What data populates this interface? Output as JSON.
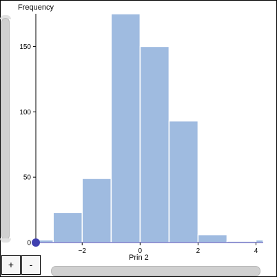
{
  "chart_data": {
    "type": "bar",
    "xlabel": "Prin 2",
    "ylabel": "Frequency",
    "bins": [
      {
        "x0": -3.5,
        "x1": -3,
        "count": 2
      },
      {
        "x0": -3,
        "x1": -2,
        "count": 23
      },
      {
        "x0": -2,
        "x1": -1,
        "count": 49
      },
      {
        "x0": -1,
        "x1": 0,
        "count": 175
      },
      {
        "x0": 0,
        "x1": 1,
        "count": 150
      },
      {
        "x0": 1,
        "x1": 2,
        "count": 93
      },
      {
        "x0": 2,
        "x1": 3,
        "count": 6
      },
      {
        "x0": 3,
        "x1": 4,
        "count": 1
      },
      {
        "x0": 4,
        "x1": 4.25,
        "count": 2
      }
    ],
    "xlim": [
      -3.6,
      4.25
    ],
    "ylim": [
      0,
      175
    ],
    "x_ticks": [
      -2,
      0,
      2,
      4
    ],
    "x_tick_labels": [
      "−2",
      "0",
      "2",
      "4"
    ],
    "y_ticks": [
      0,
      50,
      100,
      150
    ],
    "y_tick_labels": [
      "0",
      "50",
      "100",
      "150"
    ],
    "bar_color": "#9fbbe0",
    "marker_color": "#4040b0",
    "marker_x": -3.6,
    "grid": false
  },
  "controls": {
    "zoom_in_label": "+",
    "zoom_out_label": "-"
  }
}
